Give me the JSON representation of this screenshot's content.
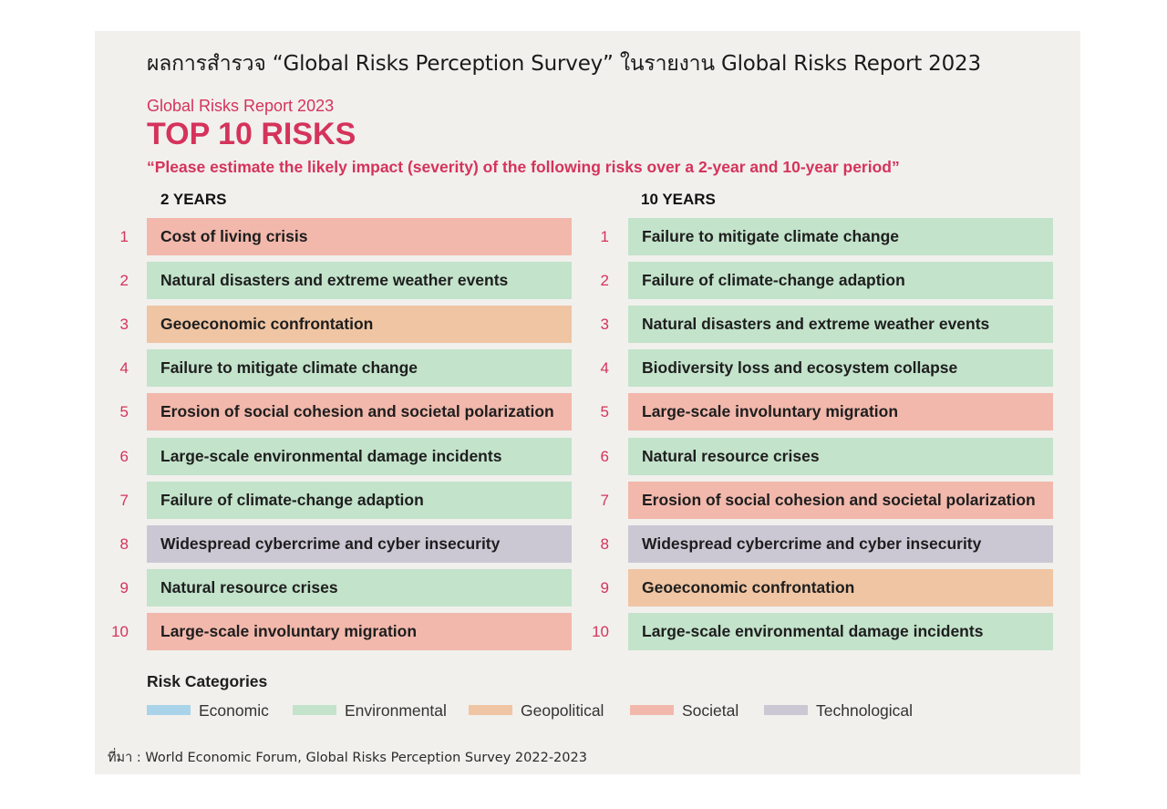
{
  "header": {
    "thai_title": "ผลการสำรวจ “Global Risks Perception Survey” ในรายงาน Global Risks Report 2023",
    "report_label": "Global Risks Report 2023",
    "title": "TOP 10 RISKS",
    "question": "“Please estimate the likely impact (severity) of the following risks over a 2-year and 10-year period”"
  },
  "colors": {
    "Economic": "#a9d3e8",
    "Environmental": "#c3e3cb",
    "Geopolitical": "#f0c5a3",
    "Societal": "#f2b8ac",
    "Technological": "#cbc8d4"
  },
  "chart_data": {
    "type": "table",
    "title": "TOP 10 RISKS",
    "columns": [
      {
        "name": "2 YEARS",
        "rows": [
          {
            "rank": "1",
            "label": "Cost of living crisis",
            "category": "Societal"
          },
          {
            "rank": "2",
            "label": "Natural disasters and extreme weather events",
            "category": "Environmental"
          },
          {
            "rank": "3",
            "label": "Geoeconomic confrontation",
            "category": "Geopolitical"
          },
          {
            "rank": "4",
            "label": "Failure to mitigate climate change",
            "category": "Environmental"
          },
          {
            "rank": "5",
            "label": "Erosion of social cohesion and societal polarization",
            "category": "Societal"
          },
          {
            "rank": "6",
            "label": "Large-scale environmental damage incidents",
            "category": "Environmental"
          },
          {
            "rank": "7",
            "label": "Failure of climate-change adaption",
            "category": "Environmental"
          },
          {
            "rank": "8",
            "label": "Widespread cybercrime and cyber insecurity",
            "category": "Technological"
          },
          {
            "rank": "9",
            "label": "Natural resource crises",
            "category": "Environmental"
          },
          {
            "rank": "10",
            "label": "Large-scale involuntary migration",
            "category": "Societal"
          }
        ]
      },
      {
        "name": "10 YEARS",
        "rows": [
          {
            "rank": "1",
            "label": "Failure to mitigate climate change",
            "category": "Environmental"
          },
          {
            "rank": "2",
            "label": "Failure of climate-change adaption",
            "category": "Environmental"
          },
          {
            "rank": "3",
            "label": "Natural disasters and extreme weather events",
            "category": "Environmental"
          },
          {
            "rank": "4",
            "label": "Biodiversity loss and ecosystem collapse",
            "category": "Environmental"
          },
          {
            "rank": "5",
            "label": "Large-scale involuntary migration",
            "category": "Societal"
          },
          {
            "rank": "6",
            "label": "Natural resource crises",
            "category": "Environmental"
          },
          {
            "rank": "7",
            "label": "Erosion of social cohesion and societal polarization",
            "category": "Societal"
          },
          {
            "rank": "8",
            "label": "Widespread cybercrime and cyber insecurity",
            "category": "Technological"
          },
          {
            "rank": "9",
            "label": "Geoeconomic confrontation",
            "category": "Geopolitical"
          },
          {
            "rank": "10",
            "label": "Large-scale environmental damage incidents",
            "category": "Environmental"
          }
        ]
      }
    ],
    "legend": {
      "title": "Risk Categories",
      "items": [
        "Economic",
        "Environmental",
        "Geopolitical",
        "Societal",
        "Technological"
      ]
    }
  },
  "source": "ที่มา : World Economic Forum, Global Risks Perception Survey 2022-2023"
}
